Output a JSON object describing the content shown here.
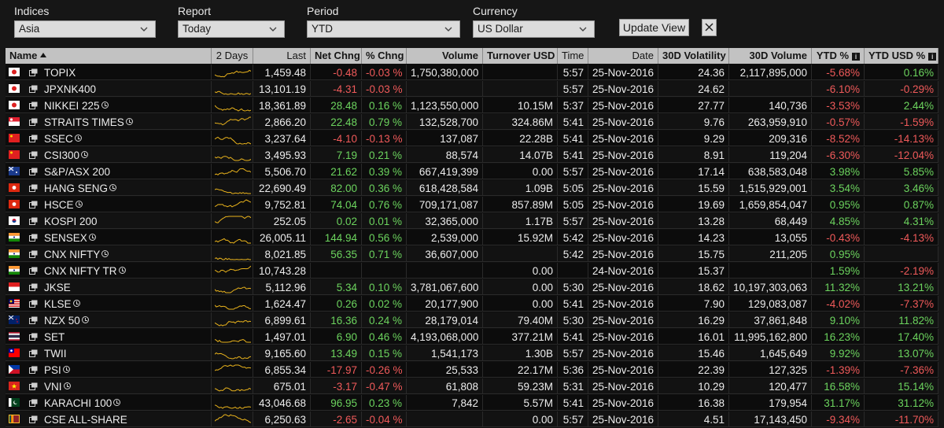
{
  "filters": {
    "indices": {
      "label": "Indices",
      "value": "Asia"
    },
    "report": {
      "label": "Report",
      "value": "Today"
    },
    "period": {
      "label": "Period",
      "value": "YTD"
    },
    "currency": {
      "label": "Currency",
      "value": "US Dollar"
    },
    "update_label": "Update View",
    "close_icon": "close-icon"
  },
  "columns": {
    "name": "Name",
    "days": "2 Days",
    "last": "Last",
    "net": "Net Chng",
    "pct": "% Chng",
    "volume": "Volume",
    "turnover": "Turnover USD",
    "time": "Time",
    "date": "Date",
    "vol30": "30D Volatility",
    "volume30": "30D Volume",
    "ytd": "YTD %",
    "ytdusd": "YTD USD %"
  },
  "colors": {
    "positive": "#6cd45e",
    "negative": "#f05a5a",
    "header_bg": "#c2c2c2",
    "sparkline": "#e8b21c"
  },
  "rows": [
    {
      "name": "TOPIX",
      "clock": false,
      "flag": "japan",
      "last": "1,459.48",
      "net": "-0.48",
      "pct": "-0.03 %",
      "volume": "1,750,380,000",
      "turnover": "",
      "time": "5:57",
      "date": "25-Nov-2016",
      "vol30": "24.36",
      "volume30": "2,117,895,000",
      "ytd": "-5.68%",
      "ytdusd": "0.16%"
    },
    {
      "name": "JPXNK400",
      "clock": false,
      "flag": "japan",
      "last": "13,101.19",
      "net": "-4.31",
      "pct": "-0.03 %",
      "volume": "",
      "turnover": "",
      "time": "5:57",
      "date": "25-Nov-2016",
      "vol30": "24.62",
      "volume30": "",
      "ytd": "-6.10%",
      "ytdusd": "-0.29%"
    },
    {
      "name": "NIKKEI 225",
      "clock": true,
      "flag": "japan",
      "last": "18,361.89",
      "net": "28.48",
      "pct": "0.16 %",
      "volume": "1,123,550,000",
      "turnover": "10.15M",
      "time": "5:37",
      "date": "25-Nov-2016",
      "vol30": "27.77",
      "volume30": "140,736",
      "ytd": "-3.53%",
      "ytdusd": "2.44%"
    },
    {
      "name": "STRAITS TIMES",
      "clock": true,
      "flag": "singapore",
      "last": "2,866.20",
      "net": "22.48",
      "pct": "0.79 %",
      "volume": "132,528,700",
      "turnover": "324.86M",
      "time": "5:41",
      "date": "25-Nov-2016",
      "vol30": "9.76",
      "volume30": "263,959,910",
      "ytd": "-0.57%",
      "ytdusd": "-1.59%"
    },
    {
      "name": "SSEC",
      "clock": true,
      "flag": "china",
      "last": "3,237.64",
      "net": "-4.10",
      "pct": "-0.13 %",
      "volume": "137,087",
      "turnover": "22.28B",
      "time": "5:41",
      "date": "25-Nov-2016",
      "vol30": "9.29",
      "volume30": "209,316",
      "ytd": "-8.52%",
      "ytdusd": "-14.13%"
    },
    {
      "name": "CSI300",
      "clock": true,
      "flag": "china",
      "last": "3,495.93",
      "net": "7.19",
      "pct": "0.21 %",
      "volume": "88,574",
      "turnover": "14.07B",
      "time": "5:41",
      "date": "25-Nov-2016",
      "vol30": "8.91",
      "volume30": "119,204",
      "ytd": "-6.30%",
      "ytdusd": "-12.04%"
    },
    {
      "name": "S&P/ASX 200",
      "clock": false,
      "flag": "australia",
      "last": "5,506.70",
      "net": "21.62",
      "pct": "0.39 %",
      "volume": "667,419,399",
      "turnover": "0.00",
      "time": "5:57",
      "date": "25-Nov-2016",
      "vol30": "17.14",
      "volume30": "638,583,048",
      "ytd": "3.98%",
      "ytdusd": "5.85%"
    },
    {
      "name": "HANG SENG",
      "clock": true,
      "flag": "hongkong",
      "last": "22,690.49",
      "net": "82.00",
      "pct": "0.36 %",
      "volume": "618,428,584",
      "turnover": "1.09B",
      "time": "5:05",
      "date": "25-Nov-2016",
      "vol30": "15.59",
      "volume30": "1,515,929,001",
      "ytd": "3.54%",
      "ytdusd": "3.46%"
    },
    {
      "name": "HSCE",
      "clock": true,
      "flag": "hongkong",
      "last": "9,752.81",
      "net": "74.04",
      "pct": "0.76 %",
      "volume": "709,171,087",
      "turnover": "857.89M",
      "time": "5:05",
      "date": "25-Nov-2016",
      "vol30": "19.69",
      "volume30": "1,659,854,047",
      "ytd": "0.95%",
      "ytdusd": "0.87%"
    },
    {
      "name": "KOSPI 200",
      "clock": false,
      "flag": "korea",
      "last": "252.05",
      "net": "0.02",
      "pct": "0.01 %",
      "volume": "32,365,000",
      "turnover": "1.17B",
      "time": "5:57",
      "date": "25-Nov-2016",
      "vol30": "13.28",
      "volume30": "68,449",
      "ytd": "4.85%",
      "ytdusd": "4.31%"
    },
    {
      "name": "SENSEX",
      "clock": true,
      "flag": "india",
      "last": "26,005.11",
      "net": "144.94",
      "pct": "0.56 %",
      "volume": "2,539,000",
      "turnover": "15.92M",
      "time": "5:42",
      "date": "25-Nov-2016",
      "vol30": "14.23",
      "volume30": "13,055",
      "ytd": "-0.43%",
      "ytdusd": "-4.13%"
    },
    {
      "name": "CNX NIFTY",
      "clock": true,
      "flag": "india",
      "last": "8,021.85",
      "net": "56.35",
      "pct": "0.71 %",
      "volume": "36,607,000",
      "turnover": "",
      "time": "5:42",
      "date": "25-Nov-2016",
      "vol30": "15.75",
      "volume30": "211,205",
      "ytd": "0.95%",
      "ytdusd": ""
    },
    {
      "name": "CNX NIFTY TR",
      "clock": true,
      "flag": "india",
      "last": "10,743.28",
      "net": "",
      "pct": "",
      "volume": "",
      "turnover": "0.00",
      "time": "",
      "date": "24-Nov-2016",
      "vol30": "15.37",
      "volume30": "",
      "ytd": "1.59%",
      "ytdusd": "-2.19%"
    },
    {
      "name": "JKSE",
      "clock": false,
      "flag": "indonesia",
      "last": "5,112.96",
      "net": "5.34",
      "pct": "0.10 %",
      "volume": "3,781,067,600",
      "turnover": "0.00",
      "time": "5:30",
      "date": "25-Nov-2016",
      "vol30": "18.62",
      "volume30": "10,197,303,063",
      "ytd": "11.32%",
      "ytdusd": "13.21%"
    },
    {
      "name": "KLSE",
      "clock": true,
      "flag": "malaysia",
      "last": "1,624.47",
      "net": "0.26",
      "pct": "0.02 %",
      "volume": "20,177,900",
      "turnover": "0.00",
      "time": "5:41",
      "date": "25-Nov-2016",
      "vol30": "7.90",
      "volume30": "129,083,087",
      "ytd": "-4.02%",
      "ytdusd": "-7.37%"
    },
    {
      "name": "NZX 50",
      "clock": true,
      "flag": "newzealand",
      "last": "6,899.61",
      "net": "16.36",
      "pct": "0.24 %",
      "volume": "28,179,014",
      "turnover": "79.40M",
      "time": "5:30",
      "date": "25-Nov-2016",
      "vol30": "16.29",
      "volume30": "37,861,848",
      "ytd": "9.10%",
      "ytdusd": "11.82%"
    },
    {
      "name": "SET",
      "clock": false,
      "flag": "thailand",
      "last": "1,497.01",
      "net": "6.90",
      "pct": "0.46 %",
      "volume": "4,193,068,000",
      "turnover": "377.21M",
      "time": "5:41",
      "date": "25-Nov-2016",
      "vol30": "16.01",
      "volume30": "11,995,162,800",
      "ytd": "16.23%",
      "ytdusd": "17.40%"
    },
    {
      "name": "TWII",
      "clock": false,
      "flag": "taiwan",
      "last": "9,165.60",
      "net": "13.49",
      "pct": "0.15 %",
      "volume": "1,541,173",
      "turnover": "1.30B",
      "time": "5:57",
      "date": "25-Nov-2016",
      "vol30": "15.46",
      "volume30": "1,645,649",
      "ytd": "9.92%",
      "ytdusd": "13.07%"
    },
    {
      "name": "PSI",
      "clock": true,
      "flag": "philippines",
      "last": "6,855.34",
      "net": "-17.97",
      "pct": "-0.26 %",
      "volume": "25,533",
      "turnover": "22.17M",
      "time": "5:36",
      "date": "25-Nov-2016",
      "vol30": "22.39",
      "volume30": "127,325",
      "ytd": "-1.39%",
      "ytdusd": "-7.36%"
    },
    {
      "name": "VNI",
      "clock": true,
      "flag": "vietnam",
      "last": "675.01",
      "net": "-3.17",
      "pct": "-0.47 %",
      "volume": "61,808",
      "turnover": "59.23M",
      "time": "5:31",
      "date": "25-Nov-2016",
      "vol30": "10.29",
      "volume30": "120,477",
      "ytd": "16.58%",
      "ytdusd": "15.14%"
    },
    {
      "name": "KARACHI 100",
      "clock": true,
      "flag": "pakistan",
      "last": "43,046.68",
      "net": "96.95",
      "pct": "0.23 %",
      "volume": "7,842",
      "turnover": "5.57M",
      "time": "5:41",
      "date": "25-Nov-2016",
      "vol30": "16.38",
      "volume30": "179,954",
      "ytd": "31.17%",
      "ytdusd": "31.12%"
    },
    {
      "name": "CSE ALL-SHARE",
      "clock": false,
      "flag": "srilanka",
      "last": "6,250.63",
      "net": "-2.65",
      "pct": "-0.04 %",
      "volume": "",
      "turnover": "0.00",
      "time": "5:57",
      "date": "25-Nov-2016",
      "vol30": "4.51",
      "volume30": "17,143,450",
      "ytd": "-9.34%",
      "ytdusd": "-11.70%"
    }
  ]
}
